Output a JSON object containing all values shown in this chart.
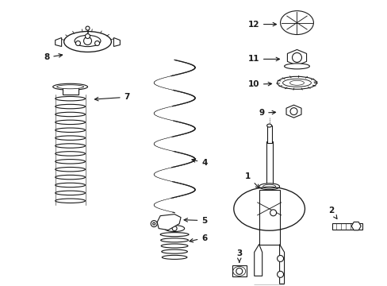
{
  "background_color": "#ffffff",
  "fig_width": 4.89,
  "fig_height": 3.6,
  "dpi": 100,
  "line_color": "#1a1a1a",
  "label_fontsize": 7.5
}
